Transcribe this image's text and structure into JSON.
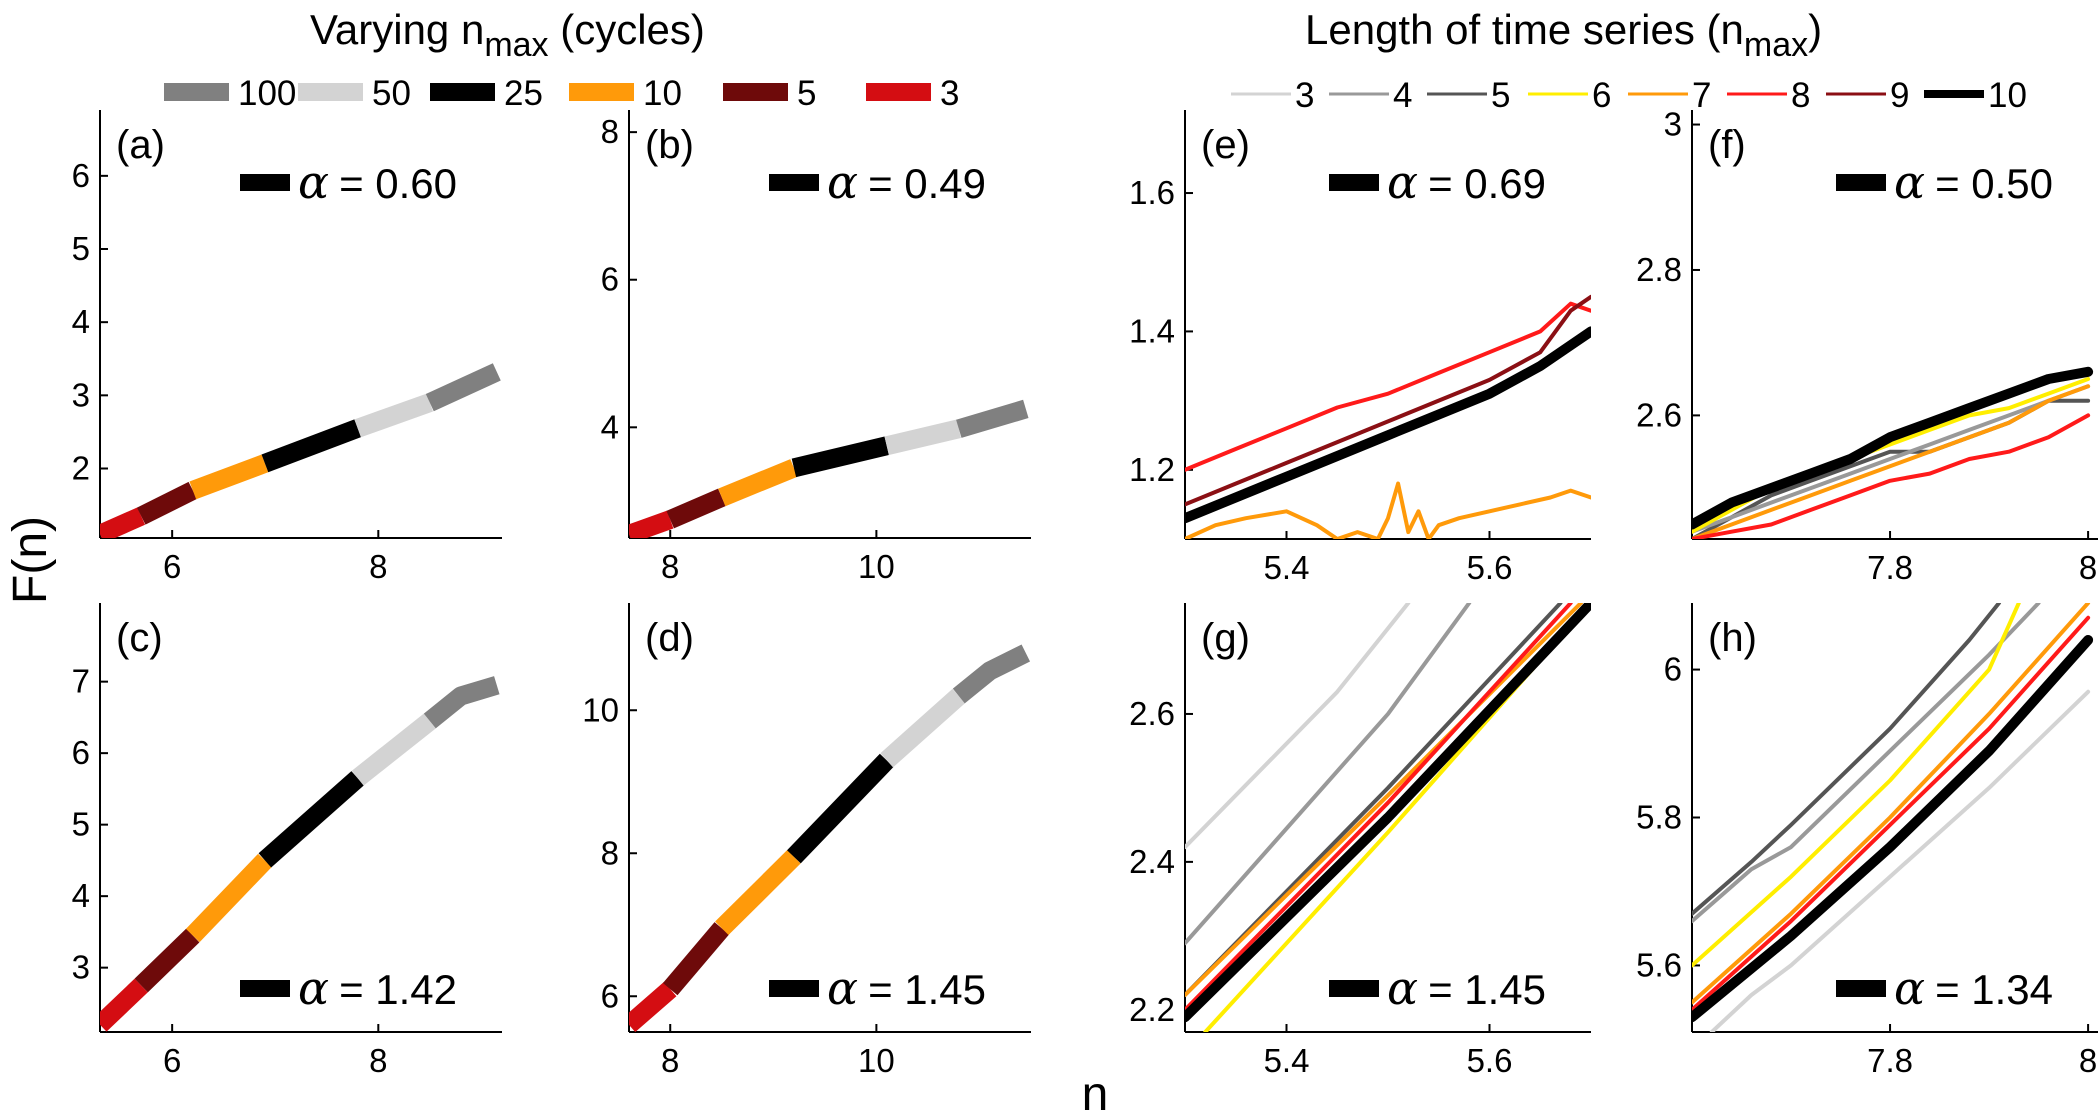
{
  "figure": {
    "ylabel": "F(n)",
    "xlabel": "n",
    "left_title_main": "Varying n",
    "left_title_sub": "max",
    "left_title_tail": " (cycles)",
    "right_title_main": "Length of time series (n",
    "right_title_sub": "max",
    "right_title_tail": ")",
    "alpha_symbol": "α"
  },
  "legends": {
    "left": [
      {
        "label": "100",
        "color": "#808080"
      },
      {
        "label": "50",
        "color": "#d3d3d3"
      },
      {
        "label": "25",
        "color": "#000000"
      },
      {
        "label": "10",
        "color": "#ff9a0a"
      },
      {
        "label": "5",
        "color": "#6e0a0a"
      },
      {
        "label": "3",
        "color": "#d40d12"
      }
    ],
    "right": [
      {
        "label": "3",
        "color": "#d3d3d3",
        "width": 3
      },
      {
        "label": "4",
        "color": "#999999",
        "width": 3
      },
      {
        "label": "5",
        "color": "#555555",
        "width": 3
      },
      {
        "label": "6",
        "color": "#ffee00",
        "width": 3
      },
      {
        "label": "7",
        "color": "#ff9a0a",
        "width": 3
      },
      {
        "label": "8",
        "color": "#ff1a1a",
        "width": 3
      },
      {
        "label": "9",
        "color": "#8b0f14",
        "width": 3
      },
      {
        "label": "10",
        "color": "#000000",
        "width": 8
      }
    ]
  },
  "chart_data": [
    {
      "id": "a",
      "type": "line",
      "panel_label": "(a)",
      "alpha_text": "= 0.60",
      "alpha_position": "top",
      "xlim": [
        5.3,
        9.2
      ],
      "ylim": [
        1.05,
        6.9
      ],
      "xticks": [
        6,
        8
      ],
      "xtick_labels": [
        "6",
        "8"
      ],
      "yticks": [
        2,
        3,
        4,
        5,
        6
      ],
      "ytick_labels": [
        "2",
        "3",
        "4",
        "5",
        "6"
      ],
      "series": [
        {
          "name": "3",
          "x": [
            5.3,
            5.7
          ],
          "y": [
            1.1,
            1.35
          ]
        },
        {
          "name": "5",
          "x": [
            5.7,
            6.2
          ],
          "y": [
            1.35,
            1.7
          ]
        },
        {
          "name": "10",
          "x": [
            6.2,
            6.9
          ],
          "y": [
            1.7,
            2.07
          ]
        },
        {
          "name": "25",
          "x": [
            6.9,
            7.8
          ],
          "y": [
            2.07,
            2.55
          ]
        },
        {
          "name": "50",
          "x": [
            7.8,
            8.5
          ],
          "y": [
            2.55,
            2.9
          ]
        },
        {
          "name": "100",
          "x": [
            8.5,
            9.15
          ],
          "y": [
            2.9,
            3.32
          ]
        }
      ]
    },
    {
      "id": "b",
      "type": "line",
      "panel_label": "(b)",
      "alpha_text": "= 0.49",
      "alpha_position": "top",
      "xlim": [
        7.6,
        11.5
      ],
      "ylim": [
        2.5,
        8.3
      ],
      "xticks": [
        8,
        10
      ],
      "xtick_labels": [
        "8",
        "10"
      ],
      "yticks": [
        4,
        6,
        8
      ],
      "ytick_labels": [
        "4",
        "6",
        "8"
      ],
      "series": [
        {
          "name": "3",
          "x": [
            7.6,
            8.0
          ],
          "y": [
            2.55,
            2.75
          ]
        },
        {
          "name": "5",
          "x": [
            8.0,
            8.5
          ],
          "y": [
            2.75,
            3.05
          ]
        },
        {
          "name": "10",
          "x": [
            8.5,
            9.2
          ],
          "y": [
            3.05,
            3.45
          ]
        },
        {
          "name": "25",
          "x": [
            9.2,
            10.1
          ],
          "y": [
            3.45,
            3.75
          ]
        },
        {
          "name": "50",
          "x": [
            10.1,
            10.8
          ],
          "y": [
            3.75,
            3.98
          ]
        },
        {
          "name": "100",
          "x": [
            10.8,
            11.45
          ],
          "y": [
            3.98,
            4.25
          ]
        }
      ]
    },
    {
      "id": "c",
      "type": "line",
      "panel_label": "(c)",
      "alpha_text": "= 1.42",
      "alpha_position": "bottom",
      "xlim": [
        5.3,
        9.2
      ],
      "ylim": [
        2.1,
        8.1
      ],
      "xticks": [
        6,
        8
      ],
      "xtick_labels": [
        "6",
        "8"
      ],
      "yticks": [
        3,
        4,
        5,
        6,
        7
      ],
      "ytick_labels": [
        "3",
        "4",
        "5",
        "6",
        "7"
      ],
      "series": [
        {
          "name": "3",
          "x": [
            5.3,
            5.7
          ],
          "y": [
            2.2,
            2.75
          ]
        },
        {
          "name": "5",
          "x": [
            5.7,
            6.2
          ],
          "y": [
            2.75,
            3.45
          ]
        },
        {
          "name": "10",
          "x": [
            6.2,
            6.9
          ],
          "y": [
            3.45,
            4.5
          ]
        },
        {
          "name": "25",
          "x": [
            6.9,
            7.8
          ],
          "y": [
            4.5,
            5.65
          ]
        },
        {
          "name": "50",
          "x": [
            7.8,
            8.5
          ],
          "y": [
            5.65,
            6.45
          ]
        },
        {
          "name": "100",
          "x": [
            8.5,
            8.8,
            9.15
          ],
          "y": [
            6.45,
            6.8,
            6.95
          ]
        }
      ]
    },
    {
      "id": "d",
      "type": "line",
      "panel_label": "(d)",
      "alpha_text": "= 1.45",
      "alpha_position": "bottom",
      "xlim": [
        7.6,
        11.5
      ],
      "ylim": [
        5.5,
        11.5
      ],
      "xticks": [
        8,
        10
      ],
      "xtick_labels": [
        "8",
        "10"
      ],
      "yticks": [
        6,
        8,
        10
      ],
      "ytick_labels": [
        "6",
        "8",
        "10"
      ],
      "series": [
        {
          "name": "3",
          "x": [
            7.6,
            8.0
          ],
          "y": [
            5.6,
            6.1
          ]
        },
        {
          "name": "5",
          "x": [
            8.0,
            8.5
          ],
          "y": [
            6.1,
            6.95
          ]
        },
        {
          "name": "10",
          "x": [
            8.5,
            9.2
          ],
          "y": [
            6.95,
            7.95
          ]
        },
        {
          "name": "25",
          "x": [
            9.2,
            10.1
          ],
          "y": [
            7.95,
            9.3
          ]
        },
        {
          "name": "50",
          "x": [
            10.1,
            10.8
          ],
          "y": [
            9.3,
            10.2
          ]
        },
        {
          "name": "100",
          "x": [
            10.8,
            11.1,
            11.45
          ],
          "y": [
            10.2,
            10.55,
            10.8
          ]
        }
      ]
    },
    {
      "id": "e",
      "type": "line",
      "panel_label": "(e)",
      "alpha_text": "= 0.69",
      "alpha_position": "top",
      "xlim": [
        5.3,
        5.7
      ],
      "ylim": [
        1.1,
        1.72
      ],
      "xticks": [
        5.4,
        5.6
      ],
      "xtick_labels": [
        "5.4",
        "5.6"
      ],
      "yticks": [
        1.2,
        1.4,
        1.6
      ],
      "ytick_labels": [
        "1.2",
        "1.4",
        "1.6"
      ],
      "series": [
        {
          "name": "7",
          "x": [
            5.3,
            5.33,
            5.36,
            5.4,
            5.43,
            5.45,
            5.47,
            5.49,
            5.5,
            5.51,
            5.52,
            5.53,
            5.54,
            5.55,
            5.57,
            5.6,
            5.63,
            5.66,
            5.68,
            5.7
          ],
          "y": [
            1.1,
            1.12,
            1.13,
            1.14,
            1.12,
            1.1,
            1.11,
            1.1,
            1.13,
            1.18,
            1.11,
            1.14,
            1.1,
            1.12,
            1.13,
            1.14,
            1.15,
            1.16,
            1.17,
            1.16
          ]
        },
        {
          "name": "8",
          "x": [
            5.3,
            5.35,
            5.4,
            5.45,
            5.5,
            5.55,
            5.6,
            5.65,
            5.68,
            5.7
          ],
          "y": [
            1.2,
            1.23,
            1.26,
            1.29,
            1.31,
            1.34,
            1.37,
            1.4,
            1.44,
            1.43
          ]
        },
        {
          "name": "9",
          "x": [
            5.3,
            5.35,
            5.4,
            5.45,
            5.5,
            5.55,
            5.6,
            5.65,
            5.68,
            5.7
          ],
          "y": [
            1.15,
            1.18,
            1.21,
            1.24,
            1.27,
            1.3,
            1.33,
            1.37,
            1.43,
            1.45
          ]
        },
        {
          "name": "10",
          "x": [
            5.3,
            5.35,
            5.4,
            5.45,
            5.5,
            5.55,
            5.6,
            5.65,
            5.68,
            5.7
          ],
          "y": [
            1.13,
            1.16,
            1.19,
            1.22,
            1.25,
            1.28,
            1.31,
            1.35,
            1.38,
            1.4
          ]
        }
      ]
    },
    {
      "id": "f",
      "type": "line",
      "panel_label": "(f)",
      "alpha_text": "= 0.50",
      "alpha_position": "top",
      "xlim": [
        7.6,
        8.01
      ],
      "ylim": [
        2.43,
        3.02
      ],
      "xticks": [
        7.8,
        8.0
      ],
      "xtick_labels": [
        "7.8",
        "8"
      ],
      "yticks": [
        2.6,
        2.8,
        3.0
      ],
      "ytick_labels": [
        "2.6",
        "2.8",
        "3"
      ],
      "series": [
        {
          "name": "5",
          "x": [
            7.6,
            7.64,
            7.68,
            7.72,
            7.76,
            7.8,
            7.84,
            7.88,
            7.92,
            7.96,
            8.0
          ],
          "y": [
            2.43,
            2.46,
            2.49,
            2.51,
            2.53,
            2.55,
            2.55,
            2.57,
            2.59,
            2.62,
            2.62
          ]
        },
        {
          "name": "4",
          "x": [
            7.6,
            7.64,
            7.68,
            7.72,
            7.76,
            7.8,
            7.84,
            7.88,
            7.92,
            7.96,
            8.0
          ],
          "y": [
            2.44,
            2.46,
            2.48,
            2.5,
            2.52,
            2.54,
            2.56,
            2.58,
            2.6,
            2.62,
            2.64
          ]
        },
        {
          "name": "6",
          "x": [
            7.6,
            7.64,
            7.68,
            7.72,
            7.76,
            7.8,
            7.84,
            7.88,
            7.92,
            7.96,
            8.0
          ],
          "y": [
            2.44,
            2.47,
            2.5,
            2.52,
            2.54,
            2.56,
            2.58,
            2.6,
            2.61,
            2.63,
            2.65
          ]
        },
        {
          "name": "7",
          "x": [
            7.6,
            7.64,
            7.68,
            7.72,
            7.76,
            7.8,
            7.84,
            7.88,
            7.92,
            7.96,
            8.0
          ],
          "y": [
            2.43,
            2.45,
            2.47,
            2.49,
            2.51,
            2.53,
            2.55,
            2.57,
            2.59,
            2.62,
            2.64
          ]
        },
        {
          "name": "8",
          "x": [
            7.6,
            7.64,
            7.68,
            7.72,
            7.76,
            7.8,
            7.84,
            7.88,
            7.92,
            7.96,
            8.0
          ],
          "y": [
            2.43,
            2.44,
            2.45,
            2.47,
            2.49,
            2.51,
            2.52,
            2.54,
            2.55,
            2.57,
            2.6
          ]
        },
        {
          "name": "10",
          "x": [
            7.6,
            7.64,
            7.68,
            7.72,
            7.76,
            7.8,
            7.84,
            7.88,
            7.92,
            7.96,
            8.0
          ],
          "y": [
            2.45,
            2.48,
            2.5,
            2.52,
            2.54,
            2.57,
            2.59,
            2.61,
            2.63,
            2.65,
            2.66
          ]
        }
      ]
    },
    {
      "id": "g",
      "type": "line",
      "panel_label": "(g)",
      "alpha_text": "= 1.45",
      "alpha_position": "bottom",
      "xlim": [
        5.3,
        5.7
      ],
      "ylim": [
        2.17,
        2.75
      ],
      "xticks": [
        5.4,
        5.6
      ],
      "xtick_labels": [
        "5.4",
        "5.6"
      ],
      "yticks": [
        2.2,
        2.4,
        2.6
      ],
      "ytick_labels": [
        "2.2",
        "2.4",
        "2.6"
      ],
      "series": [
        {
          "name": "3",
          "x": [
            5.3,
            5.45,
            5.52
          ],
          "y": [
            2.42,
            2.63,
            2.75
          ]
        },
        {
          "name": "4",
          "x": [
            5.3,
            5.5,
            5.58
          ],
          "y": [
            2.29,
            2.6,
            2.75
          ]
        },
        {
          "name": "5",
          "x": [
            5.3,
            5.5,
            5.67
          ],
          "y": [
            2.22,
            2.5,
            2.75
          ]
        },
        {
          "name": "6",
          "x": [
            5.32,
            5.5,
            5.7
          ],
          "y": [
            2.17,
            2.44,
            2.75
          ]
        },
        {
          "name": "7",
          "x": [
            5.3,
            5.5,
            5.69
          ],
          "y": [
            2.22,
            2.49,
            2.75
          ]
        },
        {
          "name": "8",
          "x": [
            5.3,
            5.5,
            5.68
          ],
          "y": [
            2.2,
            2.48,
            2.75
          ]
        },
        {
          "name": "10",
          "x": [
            5.3,
            5.5,
            5.7
          ],
          "y": [
            2.19,
            2.46,
            2.75
          ]
        }
      ]
    },
    {
      "id": "h",
      "type": "line",
      "panel_label": "(h)",
      "alpha_text": "= 1.34",
      "alpha_position": "bottom",
      "xlim": [
        7.6,
        8.01
      ],
      "ylim": [
        5.51,
        6.09
      ],
      "xticks": [
        7.8,
        8.0
      ],
      "xtick_labels": [
        "7.8",
        "8"
      ],
      "yticks": [
        5.6,
        5.8,
        6.0
      ],
      "ytick_labels": [
        "5.6",
        "5.8",
        "6"
      ],
      "series": [
        {
          "name": "3",
          "x": [
            7.62,
            7.66,
            7.7,
            7.8,
            7.9,
            8.0
          ],
          "y": [
            5.51,
            5.56,
            5.6,
            5.72,
            5.84,
            5.97
          ]
        },
        {
          "name": "4",
          "x": [
            7.6,
            7.66,
            7.7,
            7.8,
            7.9,
            7.95
          ],
          "y": [
            5.66,
            5.73,
            5.76,
            5.89,
            6.02,
            6.09
          ]
        },
        {
          "name": "5",
          "x": [
            7.6,
            7.66,
            7.7,
            7.8,
            7.88,
            7.91
          ],
          "y": [
            5.67,
            5.74,
            5.79,
            5.92,
            6.04,
            6.09
          ]
        },
        {
          "name": "6",
          "x": [
            7.6,
            7.7,
            7.8,
            7.9,
            7.93
          ],
          "y": [
            5.6,
            5.72,
            5.85,
            6.0,
            6.09
          ]
        },
        {
          "name": "7",
          "x": [
            7.6,
            7.7,
            7.8,
            7.9,
            8.0
          ],
          "y": [
            5.55,
            5.67,
            5.8,
            5.94,
            6.09
          ]
        },
        {
          "name": "8",
          "x": [
            7.6,
            7.7,
            7.8,
            7.9,
            8.0
          ],
          "y": [
            5.54,
            5.66,
            5.79,
            5.92,
            6.07
          ]
        },
        {
          "name": "10",
          "x": [
            7.6,
            7.7,
            7.8,
            7.9,
            8.0
          ],
          "y": [
            5.53,
            5.64,
            5.76,
            5.89,
            6.04
          ]
        }
      ]
    }
  ]
}
